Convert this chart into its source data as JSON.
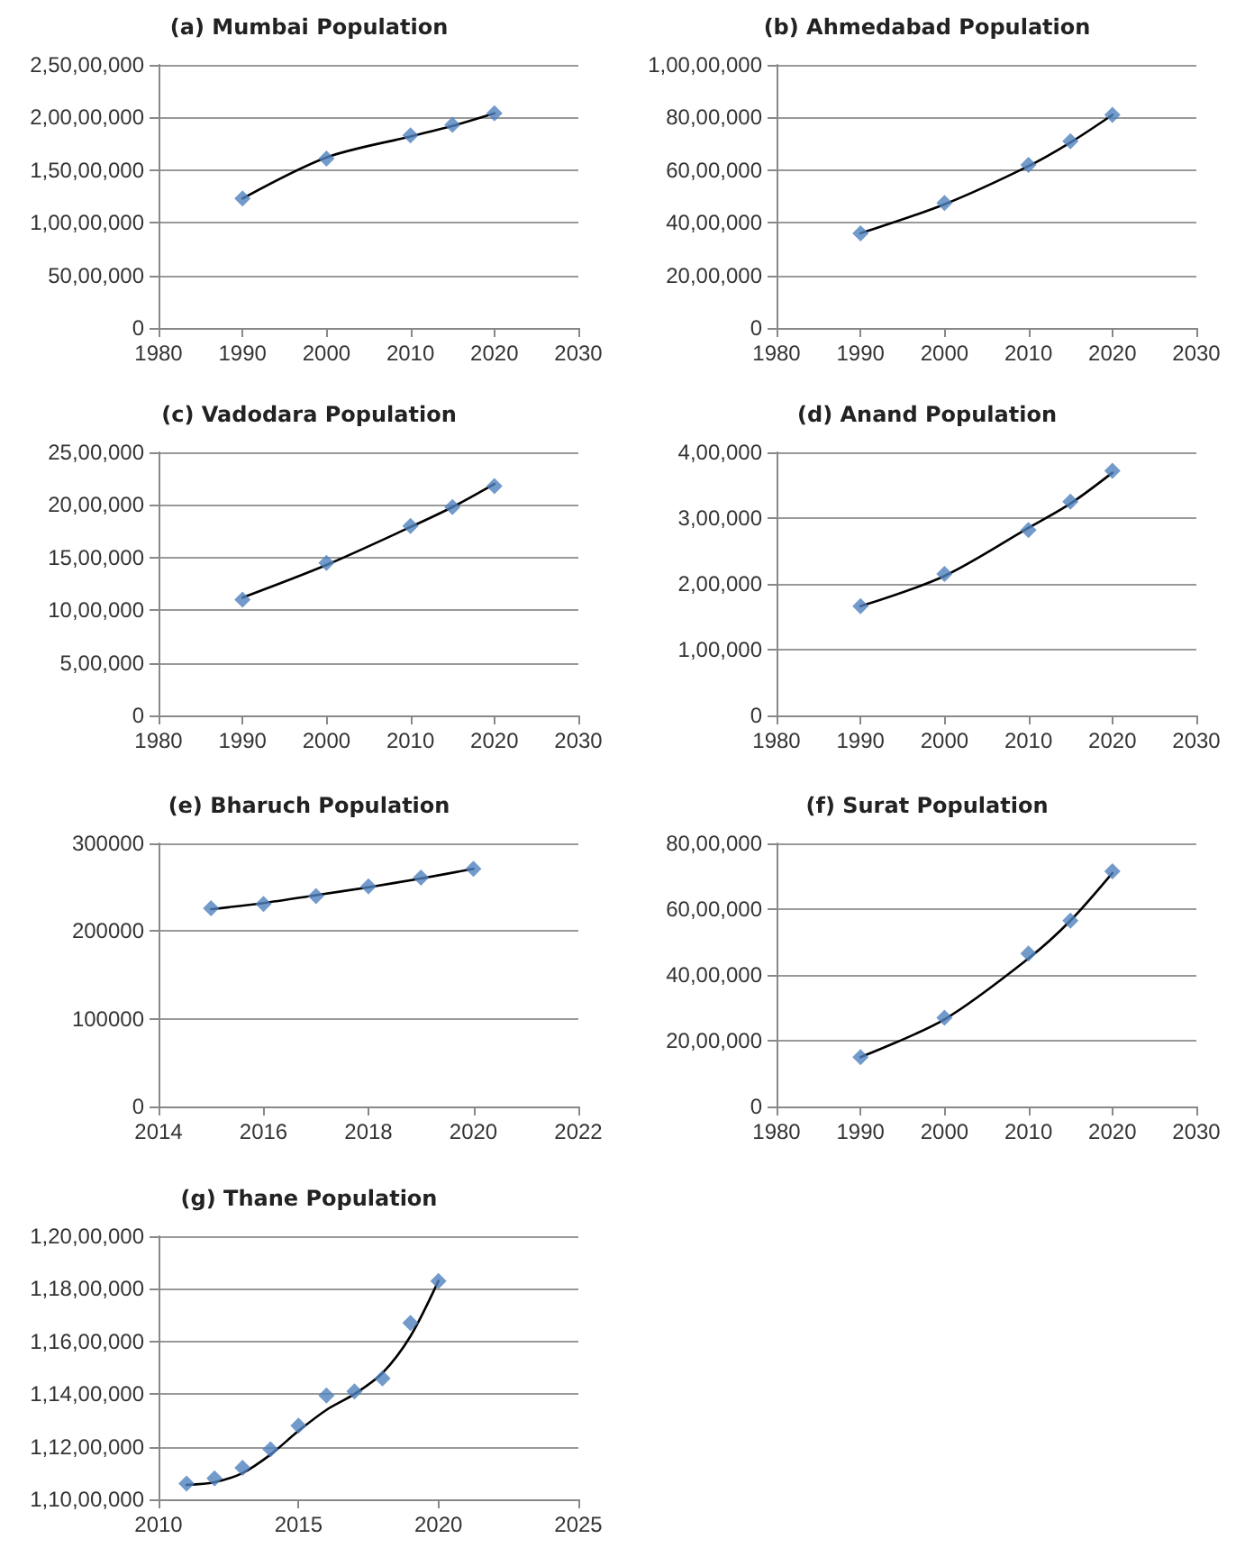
{
  "chart_data": [
    {
      "type": "scatter",
      "title": "(a) Mumbai Population",
      "x": [
        1990,
        2000,
        2010,
        2015,
        2020
      ],
      "xlim": [
        1980,
        2030
      ],
      "xticks": [
        1980,
        1990,
        2000,
        2010,
        2020,
        2030
      ],
      "ylim": [
        0,
        25000000
      ],
      "yticks": [
        0,
        {
          "value": 5000000,
          "label": "50,00,000"
        },
        {
          "value": 10000000,
          "label": "1,00,00,000"
        },
        {
          "value": 15000000,
          "label": "1,50,00,000"
        },
        {
          "value": 20000000,
          "label": "2,00,00,000"
        },
        {
          "value": 25000000,
          "label": "2,50,00,000"
        }
      ],
      "grid": "y",
      "series": [
        {
          "type": "scatter",
          "color": "#4f81bd",
          "marker": "diamond",
          "values": [
            12300000,
            16100000,
            18300000,
            19300000,
            20400000
          ]
        },
        {
          "type": "line",
          "color": "#000000",
          "marker": "none",
          "line_style": "solid",
          "values": [
            12300000,
            16200000,
            18200000,
            19200000,
            20400000
          ]
        }
      ]
    },
    {
      "type": "scatter",
      "title": "(b) Ahmedabad Population",
      "x": [
        1990,
        2000,
        2010,
        2015,
        2020
      ],
      "xlim": [
        1980,
        2030
      ],
      "xticks": [
        1980,
        1990,
        2000,
        2010,
        2020,
        2030
      ],
      "ylim": [
        0,
        10000000
      ],
      "yticks": [
        0,
        {
          "value": 2000000,
          "label": "20,00,000"
        },
        {
          "value": 4000000,
          "label": "40,00,000"
        },
        {
          "value": 6000000,
          "label": "60,00,000"
        },
        {
          "value": 8000000,
          "label": "80,00,000"
        },
        {
          "value": 10000000,
          "label": "1,00,00,000"
        }
      ],
      "grid": "y",
      "series": [
        {
          "type": "scatter",
          "color": "#4f81bd",
          "marker": "diamond",
          "values": [
            3600000,
            4750000,
            6200000,
            7100000,
            8100000
          ]
        },
        {
          "type": "line",
          "color": "#000000",
          "marker": "none",
          "line_style": "solid",
          "values": [
            3600000,
            4700000,
            6150000,
            7050000,
            8100000
          ]
        }
      ]
    },
    {
      "type": "scatter",
      "title": "(c) Vadodara Population",
      "x": [
        1990,
        2000,
        2010,
        2015,
        2020
      ],
      "xlim": [
        1980,
        2030
      ],
      "xticks": [
        1980,
        1990,
        2000,
        2010,
        2020,
        2030
      ],
      "ylim": [
        0,
        2500000
      ],
      "yticks": [
        0,
        {
          "value": 500000,
          "label": "5,00,000"
        },
        {
          "value": 1000000,
          "label": "10,00,000"
        },
        {
          "value": 1500000,
          "label": "15,00,000"
        },
        {
          "value": 2000000,
          "label": "20,00,000"
        },
        {
          "value": 2500000,
          "label": "25,00,000"
        }
      ],
      "grid": "y",
      "series": [
        {
          "type": "scatter",
          "color": "#4f81bd",
          "marker": "diamond",
          "values": [
            1100000,
            1450000,
            1800000,
            1980000,
            2180000
          ]
        },
        {
          "type": "line",
          "color": "#000000",
          "marker": "none",
          "line_style": "solid",
          "values": [
            1120000,
            1430000,
            1790000,
            1980000,
            2200000
          ]
        }
      ]
    },
    {
      "type": "scatter",
      "title": "(d) Anand Population",
      "x": [
        1990,
        2000,
        2010,
        2015,
        2020
      ],
      "xlim": [
        1980,
        2030
      ],
      "xticks": [
        1980,
        1990,
        2000,
        2010,
        2020,
        2030
      ],
      "ylim": [
        0,
        400000
      ],
      "yticks": [
        0,
        {
          "value": 100000,
          "label": "1,00,000"
        },
        {
          "value": 200000,
          "label": "2,00,000"
        },
        {
          "value": 300000,
          "label": "3,00,000"
        },
        {
          "value": 400000,
          "label": "4,00,000"
        }
      ],
      "grid": "y",
      "series": [
        {
          "type": "scatter",
          "color": "#4f81bd",
          "marker": "diamond",
          "values": [
            166000,
            215000,
            282000,
            325000,
            372000
          ]
        },
        {
          "type": "line",
          "color": "#000000",
          "marker": "none",
          "line_style": "solid",
          "values": [
            166000,
            212000,
            285000,
            322000,
            369000
          ]
        }
      ]
    },
    {
      "type": "scatter",
      "title": "(e) Bharuch Population",
      "x": [
        2015,
        2016,
        2017,
        2018,
        2019,
        2020
      ],
      "xlim": [
        2014,
        2022
      ],
      "xticks": [
        2014,
        2016,
        2018,
        2020,
        2022
      ],
      "ylim": [
        0,
        300000
      ],
      "yticks": [
        0,
        100000,
        200000,
        300000
      ],
      "grid": "y",
      "series": [
        {
          "type": "scatter",
          "color": "#4f81bd",
          "marker": "diamond",
          "values": [
            226000,
            231000,
            240000,
            251000,
            261000,
            271000
          ]
        },
        {
          "type": "line",
          "color": "#000000",
          "marker": "none",
          "line_style": "solid",
          "values": [
            225000,
            232000,
            241000,
            250000,
            260000,
            271000
          ]
        }
      ]
    },
    {
      "type": "scatter",
      "title": "(f) Surat Population",
      "x": [
        1990,
        2000,
        2010,
        2015,
        2020
      ],
      "xlim": [
        1980,
        2030
      ],
      "xticks": [
        1980,
        1990,
        2000,
        2010,
        2020,
        2030
      ],
      "ylim": [
        0,
        8000000
      ],
      "yticks": [
        0,
        {
          "value": 2000000,
          "label": "20,00,000"
        },
        {
          "value": 4000000,
          "label": "40,00,000"
        },
        {
          "value": 6000000,
          "label": "60,00,000"
        },
        {
          "value": 8000000,
          "label": "80,00,000"
        }
      ],
      "grid": "y",
      "series": [
        {
          "type": "scatter",
          "color": "#4f81bd",
          "marker": "diamond",
          "values": [
            1500000,
            2700000,
            4650000,
            5650000,
            7150000
          ]
        },
        {
          "type": "line",
          "color": "#000000",
          "marker": "none",
          "line_style": "solid",
          "values": [
            1500000,
            2650000,
            4500000,
            5650000,
            7100000
          ]
        }
      ]
    },
    {
      "type": "scatter",
      "title": "(g) Thane Population",
      "x": [
        2011,
        2012,
        2013,
        2014,
        2015,
        2016,
        2017,
        2018,
        2019,
        2020
      ],
      "xlim": [
        2010,
        2025
      ],
      "xticks": [
        2010,
        2015,
        2020,
        2025
      ],
      "ylim": [
        11000000,
        12000000
      ],
      "yticks": [
        {
          "value": 11000000,
          "label": "1,10,00,000"
        },
        {
          "value": 11200000,
          "label": "1,12,00,000"
        },
        {
          "value": 11400000,
          "label": "1,14,00,000"
        },
        {
          "value": 11600000,
          "label": "1,16,00,000"
        },
        {
          "value": 11800000,
          "label": "1,18,00,000"
        },
        {
          "value": 12000000,
          "label": "1,20,00,000"
        }
      ],
      "grid": "y",
      "series": [
        {
          "type": "scatter",
          "color": "#4f81bd",
          "marker": "diamond",
          "values": [
            11060000,
            11080000,
            11120000,
            11190000,
            11280000,
            11395000,
            11410000,
            11460000,
            11670000,
            11830000
          ]
        },
        {
          "type": "line",
          "color": "#000000",
          "marker": "none",
          "line_style": "solid",
          "values": [
            11055000,
            11065000,
            11100000,
            11170000,
            11260000,
            11340000,
            11400000,
            11480000,
            11620000,
            11830000
          ]
        }
      ]
    }
  ]
}
